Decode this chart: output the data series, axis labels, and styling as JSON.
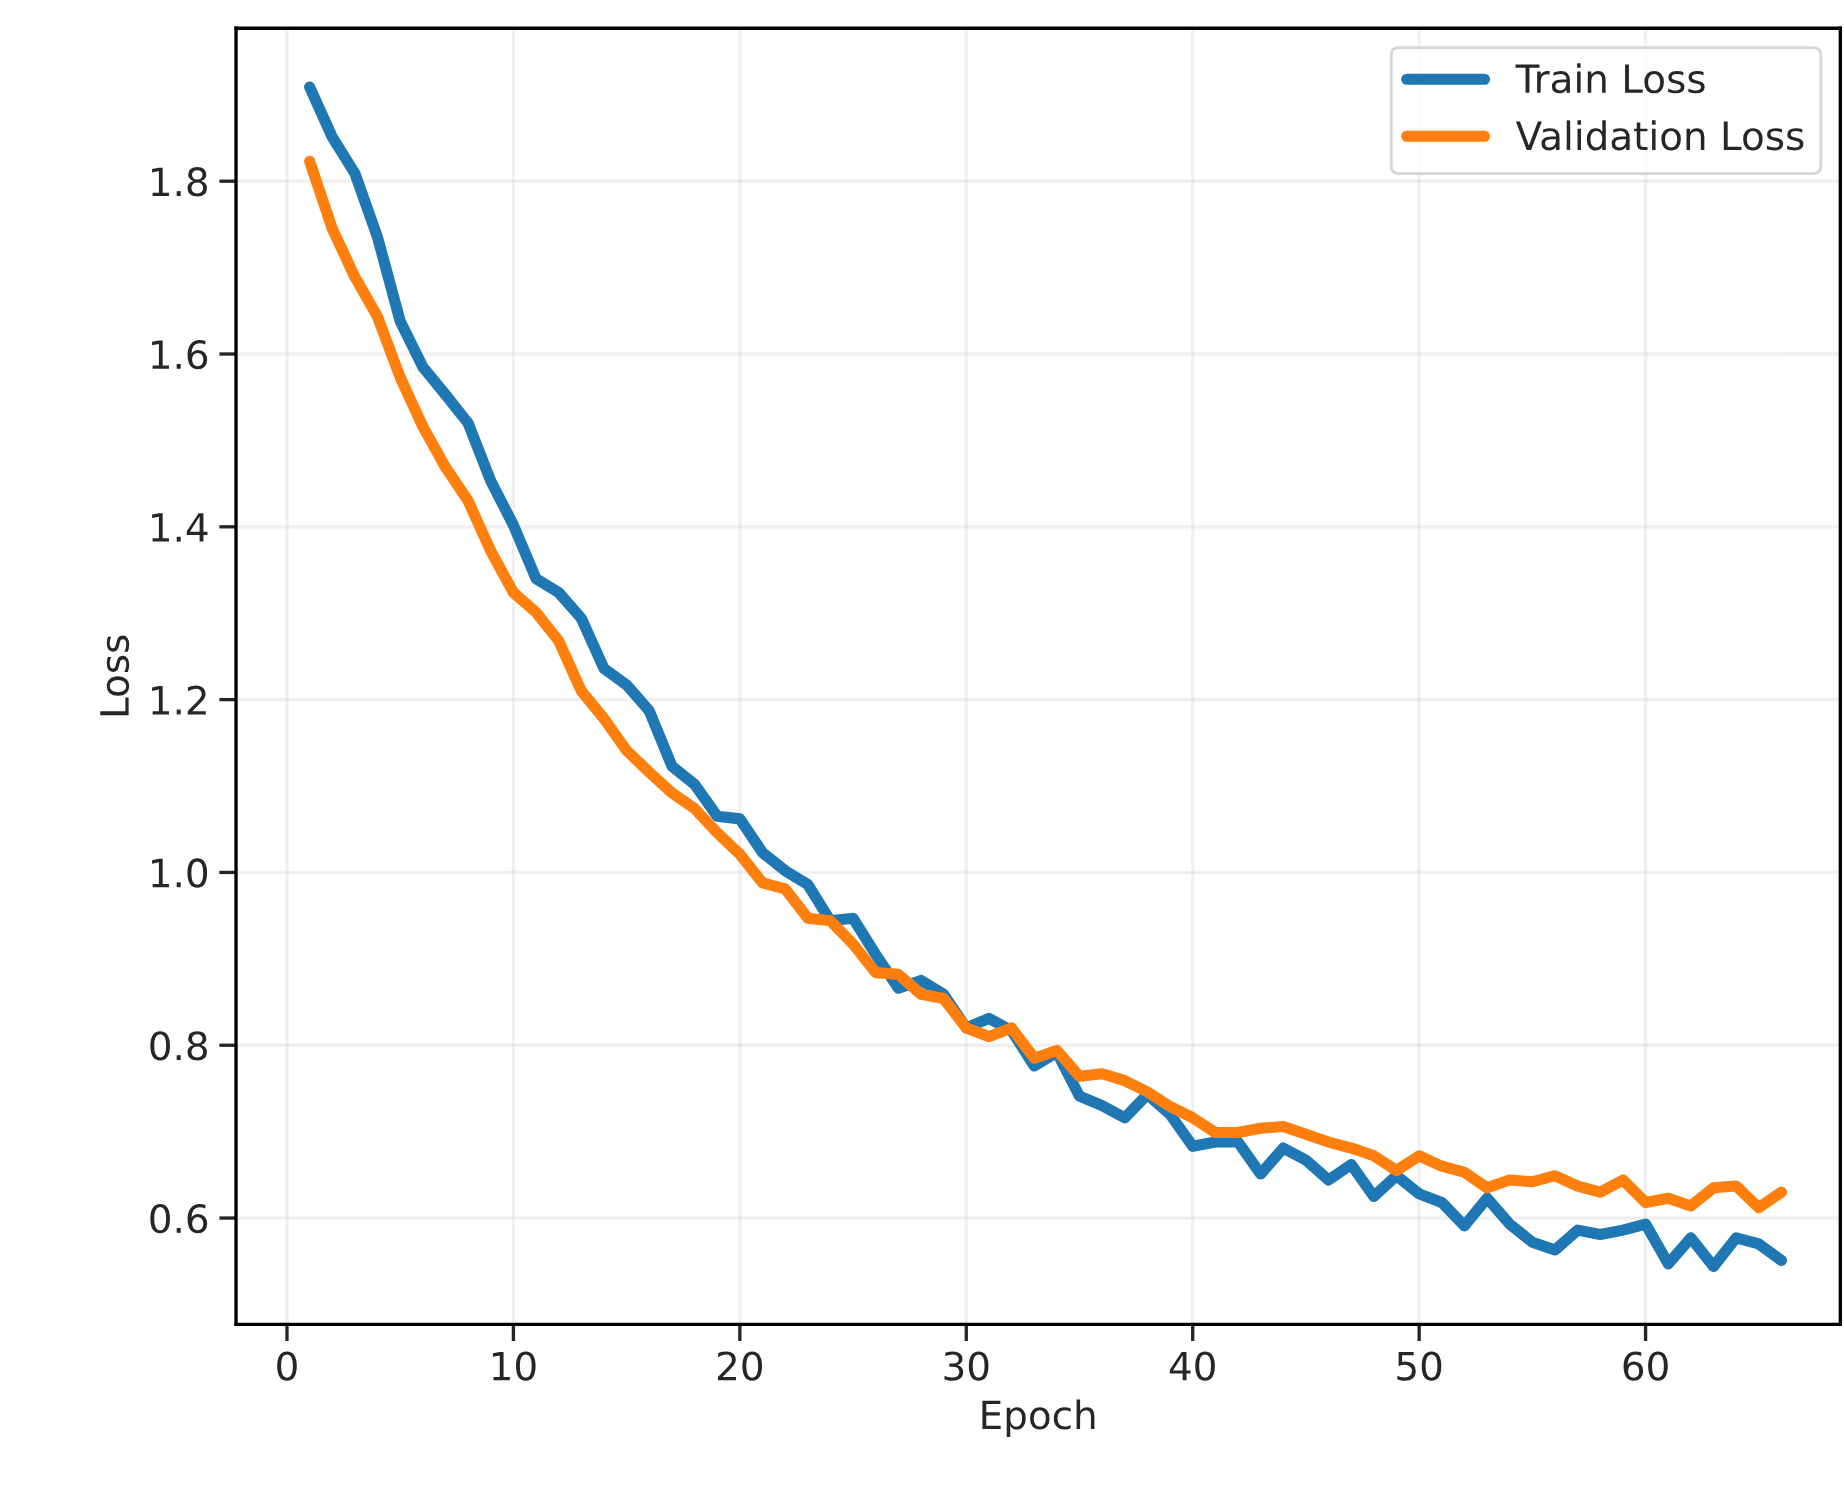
{
  "chart_data": {
    "type": "line",
    "xlabel": "Epoch",
    "ylabel": "Loss",
    "x": [
      1,
      2,
      3,
      4,
      5,
      6,
      7,
      8,
      9,
      10,
      11,
      12,
      13,
      14,
      15,
      16,
      17,
      18,
      19,
      20,
      21,
      22,
      23,
      24,
      25,
      26,
      27,
      28,
      29,
      30,
      31,
      32,
      33,
      34,
      35,
      36,
      37,
      38,
      39,
      40,
      41,
      42,
      43,
      44,
      45,
      46,
      47,
      48,
      49,
      50,
      51,
      52,
      53,
      54,
      55,
      56,
      57,
      58,
      59,
      60,
      61,
      62,
      63,
      64,
      65,
      66
    ],
    "series": [
      {
        "name": "Train Loss",
        "color": "#1f77b4",
        "values": [
          1.909,
          1.851,
          1.809,
          1.735,
          1.638,
          1.585,
          1.553,
          1.52,
          1.453,
          1.402,
          1.34,
          1.324,
          1.294,
          1.236,
          1.217,
          1.187,
          1.123,
          1.102,
          1.065,
          1.062,
          1.023,
          1.002,
          0.986,
          0.944,
          0.947,
          0.905,
          0.866,
          0.875,
          0.859,
          0.82,
          0.831,
          0.817,
          0.776,
          0.792,
          0.741,
          0.73,
          0.716,
          0.743,
          0.72,
          0.683,
          0.688,
          0.688,
          0.651,
          0.681,
          0.667,
          0.644,
          0.662,
          0.625,
          0.649,
          0.628,
          0.618,
          0.591,
          0.623,
          0.593,
          0.572,
          0.563,
          0.586,
          0.581,
          0.586,
          0.593,
          0.547,
          0.577,
          0.544,
          0.577,
          0.57,
          0.551
        ]
      },
      {
        "name": "Validation Loss",
        "color": "#ff7f0e",
        "values": [
          1.823,
          1.745,
          1.689,
          1.643,
          1.573,
          1.516,
          1.469,
          1.43,
          1.372,
          1.324,
          1.301,
          1.268,
          1.21,
          1.178,
          1.141,
          1.116,
          1.092,
          1.074,
          1.046,
          1.021,
          0.988,
          0.981,
          0.947,
          0.944,
          0.917,
          0.884,
          0.882,
          0.859,
          0.854,
          0.82,
          0.81,
          0.82,
          0.785,
          0.794,
          0.764,
          0.767,
          0.759,
          0.746,
          0.729,
          0.716,
          0.699,
          0.699,
          0.704,
          0.706,
          0.697,
          0.688,
          0.681,
          0.672,
          0.655,
          0.672,
          0.66,
          0.653,
          0.635,
          0.644,
          0.642,
          0.649,
          0.637,
          0.63,
          0.644,
          0.618,
          0.623,
          0.614,
          0.635,
          0.637,
          0.612,
          0.63
        ]
      }
    ],
    "xlim": [
      -2.25,
      68.6
    ],
    "ylim": [
      0.477,
      1.977
    ],
    "xticks": [
      0,
      10,
      20,
      30,
      40,
      50,
      60
    ],
    "yticks": [
      0.6,
      0.8,
      {
        "value": 1,
        "label": "1.0"
      },
      1.2,
      1.4,
      1.6,
      1.8
    ],
    "grid": true,
    "legend": "top right",
    "marker": "none",
    "line_style": "solid"
  }
}
